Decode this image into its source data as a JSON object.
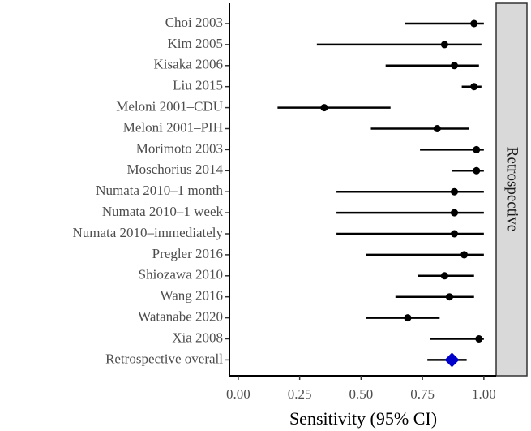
{
  "chart_data": {
    "type": "forest",
    "facet": "Retrospective",
    "xlabel": "Sensitivity (95% CI)",
    "categories": [
      "Choi 2003",
      "Kim 2005",
      "Kisaka 2006",
      "Liu 2015",
      "Meloni 2001–CDU",
      "Meloni 2001–PIH",
      "Morimoto 2003",
      "Moschorius 2014",
      "Numata 2010–1 month",
      "Numata 2010–1 week",
      "Numata 2010–immediately",
      "Pregler 2016",
      "Shiozawa 2010",
      "Wang 2016",
      "Watanabe 2020",
      "Xia 2008"
    ],
    "values": [
      0.96,
      0.84,
      0.88,
      0.96,
      0.35,
      0.81,
      0.97,
      0.97,
      0.88,
      0.88,
      0.88,
      0.92,
      0.84,
      0.86,
      0.69,
      0.98
    ],
    "lower": [
      0.68,
      0.32,
      0.6,
      0.91,
      0.16,
      0.54,
      0.74,
      0.87,
      0.4,
      0.4,
      0.4,
      0.52,
      0.73,
      0.64,
      0.52,
      0.78
    ],
    "upper": [
      1.0,
      0.99,
      0.98,
      0.99,
      0.62,
      0.94,
      1.0,
      1.0,
      1.0,
      1.0,
      1.0,
      1.0,
      0.96,
      0.96,
      0.82,
      1.0
    ],
    "color": "#000000",
    "overall": {
      "name": "Retrospective overall",
      "value": 0.87,
      "lower": 0.77,
      "upper": 0.93,
      "color": "#0000cc"
    },
    "xlim": [
      -0.036,
      1.05
    ],
    "xticks": [
      {
        "value": 0,
        "label": "0.00"
      },
      {
        "value": 0.25,
        "label": "0.25"
      },
      {
        "value": 0.5,
        "label": "0.50"
      },
      {
        "value": 0.75,
        "label": "0.75"
      },
      {
        "value": 1,
        "label": "1.00"
      }
    ]
  }
}
